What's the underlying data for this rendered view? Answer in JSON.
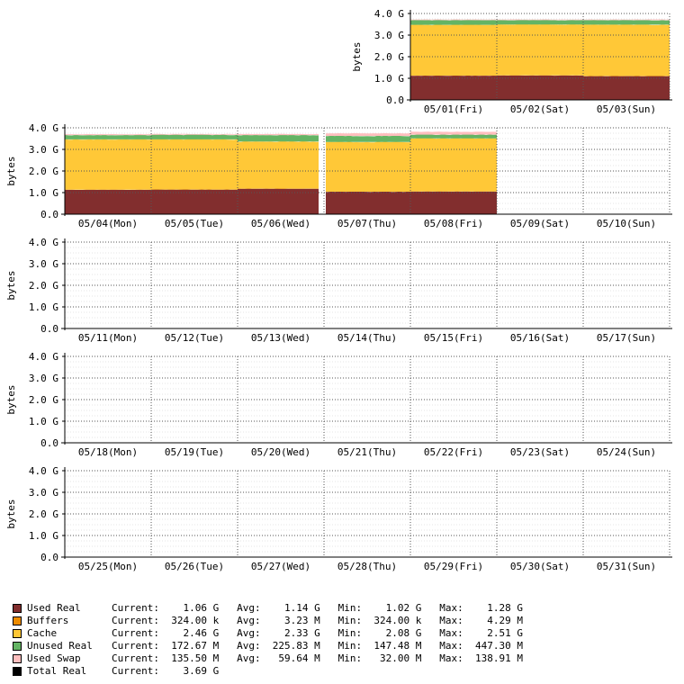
{
  "chart_data": {
    "type": "area",
    "ylabel": "bytes",
    "yticks": [
      "0.0",
      "1.0 G",
      "2.0 G",
      "3.0 G",
      "4.0 G"
    ],
    "ylim": [
      0,
      4
    ],
    "colors": {
      "used_real": "#822e2e",
      "buffers": "#ee8c00",
      "cache": "#ffc837",
      "unused_real": "#64b464",
      "used_swap": "#ffbebe",
      "total_real": "#000000"
    },
    "weeks": [
      {
        "days": [
          "",
          "",
          "",
          "",
          "05/01(Fri)",
          "05/02(Sat)",
          "05/03(Sun)"
        ],
        "has_data": [
          false,
          false,
          false,
          false,
          true,
          true,
          true
        ],
        "series": {
          "used_real": [
            null,
            null,
            null,
            null,
            1.12,
            1.13,
            1.1
          ],
          "buffers": [
            null,
            null,
            null,
            null,
            0.003,
            0.003,
            0.003
          ],
          "cache": [
            null,
            null,
            null,
            null,
            2.35,
            2.36,
            2.38
          ],
          "unused_real": [
            null,
            null,
            null,
            null,
            0.22,
            0.2,
            0.21
          ],
          "used_swap": [
            null,
            null,
            null,
            null,
            0.03,
            0.03,
            0.03
          ]
        }
      },
      {
        "days": [
          "05/04(Mon)",
          "05/05(Tue)",
          "05/06(Wed)",
          "05/07(Thu)",
          "05/08(Fri)",
          "05/09(Sat)",
          "05/10(Sun)"
        ],
        "has_data": [
          true,
          true,
          true,
          true,
          true,
          false,
          false
        ],
        "series": {
          "used_real": [
            1.13,
            1.14,
            1.18,
            1.04,
            1.05,
            null,
            null
          ],
          "buffers": [
            0.003,
            0.003,
            0.003,
            0.003,
            0.003,
            null,
            null
          ],
          "cache": [
            2.33,
            2.32,
            2.18,
            2.3,
            2.46,
            null,
            null
          ],
          "unused_real": [
            0.2,
            0.21,
            0.3,
            0.28,
            0.17,
            null,
            null
          ],
          "used_swap": [
            0.04,
            0.04,
            0.05,
            0.12,
            0.13,
            null,
            null
          ]
        }
      },
      {
        "days": [
          "05/11(Mon)",
          "05/12(Tue)",
          "05/13(Wed)",
          "05/14(Thu)",
          "05/15(Fri)",
          "05/16(Sat)",
          "05/17(Sun)"
        ],
        "has_data": [
          false,
          false,
          false,
          false,
          false,
          false,
          false
        ]
      },
      {
        "days": [
          "05/18(Mon)",
          "05/19(Tue)",
          "05/20(Wed)",
          "05/21(Thu)",
          "05/22(Fri)",
          "05/23(Sat)",
          "05/24(Sun)"
        ],
        "has_data": [
          false,
          false,
          false,
          false,
          false,
          false,
          false
        ]
      },
      {
        "days": [
          "05/25(Mon)",
          "05/26(Tue)",
          "05/27(Wed)",
          "05/28(Thu)",
          "05/29(Fri)",
          "05/30(Sat)",
          "05/31(Sun)"
        ],
        "has_data": [
          false,
          false,
          false,
          false,
          false,
          false,
          false
        ]
      }
    ],
    "legend": [
      {
        "key": "used_real",
        "name": "Used Real",
        "stats": "Current:    1.06 G   Avg:    1.14 G   Min:    1.02 G   Max:    1.28 G"
      },
      {
        "key": "buffers",
        "name": "Buffers",
        "stats": "Current:  324.00 k   Avg:    3.23 M   Min:  324.00 k   Max:    4.29 M"
      },
      {
        "key": "cache",
        "name": "Cache",
        "stats": "Current:    2.46 G   Avg:    2.33 G   Min:    2.08 G   Max:    2.51 G"
      },
      {
        "key": "unused_real",
        "name": "Unused Real",
        "stats": "Current:  172.67 M   Avg:  225.83 M   Min:  147.48 M   Max:  447.30 M"
      },
      {
        "key": "used_swap",
        "name": "Used Swap",
        "stats": "Current:  135.50 M   Avg:   59.64 M   Min:   32.00 M   Max:  138.91 M"
      },
      {
        "key": "total_real",
        "name": "Total Real",
        "stats": "Current:    3.69 G"
      }
    ]
  }
}
